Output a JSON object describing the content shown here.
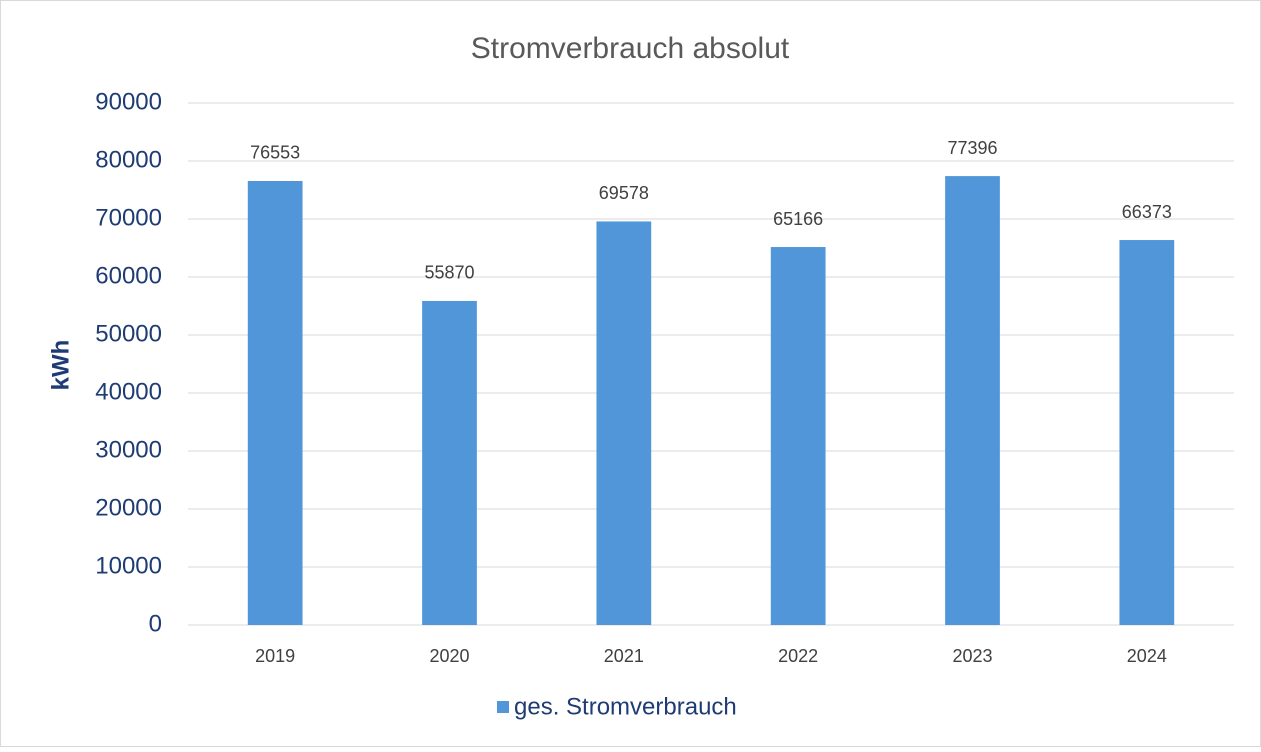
{
  "chart_data": {
    "type": "bar",
    "title": "Stromverbrauch absolut",
    "y_label": "kWh",
    "categories": [
      "2019",
      "2020",
      "2021",
      "2022",
      "2023",
      "2024"
    ],
    "series": [
      {
        "name": "ges. Stromverbrauch",
        "color": "#5196d9",
        "values": [
          76553,
          55870,
          69578,
          65166,
          77396,
          66373
        ]
      }
    ],
    "ylim": [
      0,
      90000
    ],
    "yticks": [
      0,
      10000,
      20000,
      30000,
      40000,
      50000,
      60000,
      70000,
      80000,
      90000
    ],
    "grid": true,
    "legend": "bottom",
    "data_labels": true
  }
}
